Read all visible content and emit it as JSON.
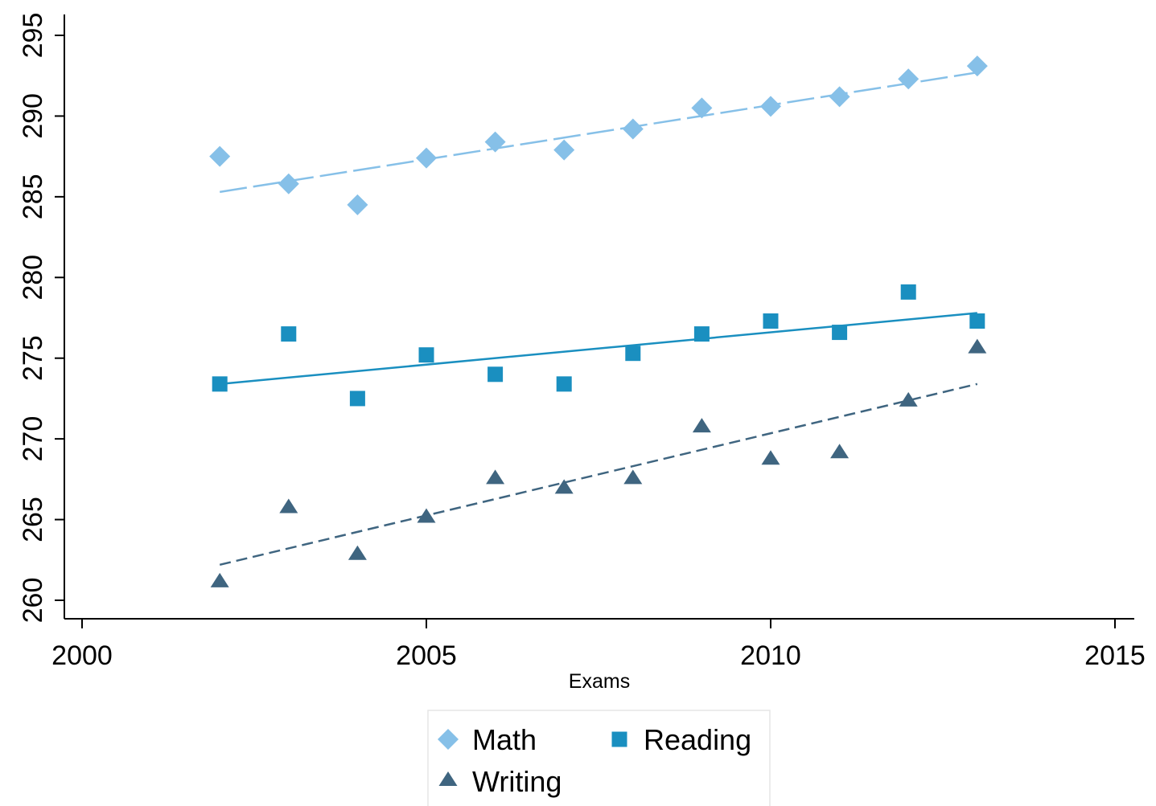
{
  "chart_data": {
    "type": "scatter",
    "title": "",
    "xlabel": "Exams",
    "ylabel": "",
    "xlim": [
      2000,
      2015
    ],
    "ylim": [
      260,
      295
    ],
    "x_ticks": [
      2000,
      2005,
      2010,
      2015
    ],
    "y_ticks": [
      260,
      265,
      270,
      275,
      280,
      285,
      290,
      295
    ],
    "grid": false,
    "legend_position": "bottom",
    "x": [
      2002,
      2003,
      2004,
      2005,
      2006,
      2007,
      2008,
      2009,
      2010,
      2011,
      2012,
      2013
    ],
    "series": [
      {
        "name": "Math",
        "marker": "diamond",
        "color": "#86c0e8",
        "values": [
          287.5,
          285.8,
          284.5,
          287.4,
          288.4,
          287.9,
          289.2,
          290.5,
          290.6,
          291.2,
          292.3,
          293.1
        ],
        "fit_line": {
          "style": "long-dash",
          "start": [
            2002,
            285.3
          ],
          "end": [
            2013,
            292.7
          ]
        }
      },
      {
        "name": "Reading",
        "marker": "square",
        "color": "#1a8fc0",
        "values": [
          273.4,
          276.5,
          272.5,
          275.2,
          274.0,
          273.4,
          275.3,
          276.5,
          277.3,
          276.6,
          279.1,
          277.3
        ],
        "fit_line": {
          "style": "solid",
          "start": [
            2002,
            273.4
          ],
          "end": [
            2013,
            277.8
          ]
        }
      },
      {
        "name": "Writing",
        "marker": "triangle",
        "color": "#3f6580",
        "values": [
          261.2,
          265.8,
          262.9,
          265.2,
          267.6,
          267.0,
          267.6,
          270.8,
          268.8,
          269.2,
          272.4,
          275.7
        ],
        "fit_line": {
          "style": "short-dash",
          "start": [
            2002,
            262.2
          ],
          "end": [
            2013,
            273.4
          ]
        }
      }
    ]
  }
}
